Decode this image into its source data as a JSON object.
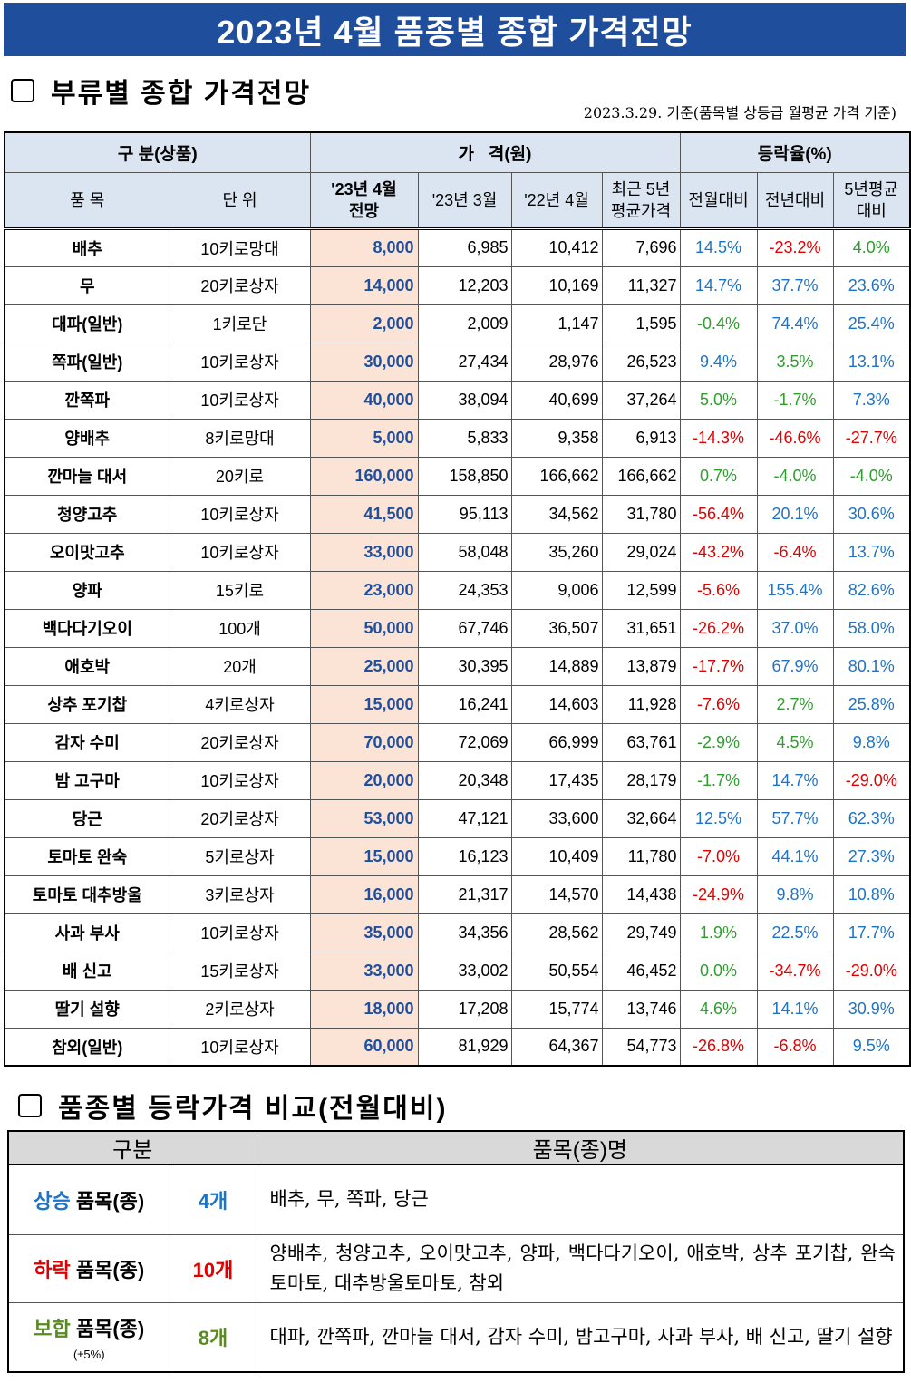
{
  "title": "2023년 4월 품종별 종합 가격전망",
  "section1": {
    "title": "부류별 종합 가격전망",
    "note": "2023.3.29. 기준(품목별 상등급 월평균 가격 기준)"
  },
  "table": {
    "header": {
      "group": "구 분(상품)",
      "price": "가   격(원)",
      "rate": "등락율(%)",
      "item": "품 목",
      "unit": "단 위",
      "forecast_1": "'23년 4월",
      "forecast_2": "전망",
      "mar23": "'23년 3월",
      "apr22": "'22년 4월",
      "avg5_1": "최근 5년",
      "avg5_2": "평균가격",
      "mom": "전월대비",
      "yoy": "전년대비",
      "vs5_1": "5년평균",
      "vs5_2": "대비"
    },
    "rows": [
      {
        "name": "배추",
        "unit": "10키로망대",
        "forecast": "8,000",
        "mar23": "6,985",
        "apr22": "10,412",
        "avg5": "7,696",
        "mom": "14.5%",
        "yoy": "-23.2%",
        "vs5": "4.0%",
        "mom_c": "up",
        "yoy_c": "down",
        "vs5_c": "flat"
      },
      {
        "name": "무",
        "unit": "20키로상자",
        "forecast": "14,000",
        "mar23": "12,203",
        "apr22": "10,169",
        "avg5": "11,327",
        "mom": "14.7%",
        "yoy": "37.7%",
        "vs5": "23.6%",
        "mom_c": "up",
        "yoy_c": "up",
        "vs5_c": "up"
      },
      {
        "name": "대파(일반)",
        "unit": "1키로단",
        "forecast": "2,000",
        "mar23": "2,009",
        "apr22": "1,147",
        "avg5": "1,595",
        "mom": "-0.4%",
        "yoy": "74.4%",
        "vs5": "25.4%",
        "mom_c": "flat",
        "yoy_c": "up",
        "vs5_c": "up"
      },
      {
        "name": "쪽파(일반)",
        "unit": "10키로상자",
        "forecast": "30,000",
        "mar23": "27,434",
        "apr22": "28,976",
        "avg5": "26,523",
        "mom": "9.4%",
        "yoy": "3.5%",
        "vs5": "13.1%",
        "mom_c": "up",
        "yoy_c": "flat",
        "vs5_c": "up"
      },
      {
        "name": "깐쪽파",
        "unit": "10키로상자",
        "forecast": "40,000",
        "mar23": "38,094",
        "apr22": "40,699",
        "avg5": "37,264",
        "mom": "5.0%",
        "yoy": "-1.7%",
        "vs5": "7.3%",
        "mom_c": "flat",
        "yoy_c": "flat",
        "vs5_c": "up"
      },
      {
        "name": "양배추",
        "unit": "8키로망대",
        "forecast": "5,000",
        "mar23": "5,833",
        "apr22": "9,358",
        "avg5": "6,913",
        "mom": "-14.3%",
        "yoy": "-46.6%",
        "vs5": "-27.7%",
        "mom_c": "down",
        "yoy_c": "down",
        "vs5_c": "down"
      },
      {
        "name": "깐마늘 대서",
        "unit": "20키로",
        "forecast": "160,000",
        "mar23": "158,850",
        "apr22": "166,662",
        "avg5": "166,662",
        "mom": "0.7%",
        "yoy": "-4.0%",
        "vs5": "-4.0%",
        "mom_c": "flat",
        "yoy_c": "flat",
        "vs5_c": "flat"
      },
      {
        "name": "청양고추",
        "unit": "10키로상자",
        "forecast": "41,500",
        "mar23": "95,113",
        "apr22": "34,562",
        "avg5": "31,780",
        "mom": "-56.4%",
        "yoy": "20.1%",
        "vs5": "30.6%",
        "mom_c": "down",
        "yoy_c": "up",
        "vs5_c": "up"
      },
      {
        "name": "오이맛고추",
        "unit": "10키로상자",
        "forecast": "33,000",
        "mar23": "58,048",
        "apr22": "35,260",
        "avg5": "29,024",
        "mom": "-43.2%",
        "yoy": "-6.4%",
        "vs5": "13.7%",
        "mom_c": "down",
        "yoy_c": "down",
        "vs5_c": "up"
      },
      {
        "name": "양파",
        "unit": "15키로",
        "forecast": "23,000",
        "mar23": "24,353",
        "apr22": "9,006",
        "avg5": "12,599",
        "mom": "-5.6%",
        "yoy": "155.4%",
        "vs5": "82.6%",
        "mom_c": "down",
        "yoy_c": "up",
        "vs5_c": "up"
      },
      {
        "name": "백다다기오이",
        "unit": "100개",
        "forecast": "50,000",
        "mar23": "67,746",
        "apr22": "36,507",
        "avg5": "31,651",
        "mom": "-26.2%",
        "yoy": "37.0%",
        "vs5": "58.0%",
        "mom_c": "down",
        "yoy_c": "up",
        "vs5_c": "up"
      },
      {
        "name": "애호박",
        "unit": "20개",
        "forecast": "25,000",
        "mar23": "30,395",
        "apr22": "14,889",
        "avg5": "13,879",
        "mom": "-17.7%",
        "yoy": "67.9%",
        "vs5": "80.1%",
        "mom_c": "down",
        "yoy_c": "up",
        "vs5_c": "up"
      },
      {
        "name": "상추 포기찹",
        "unit": "4키로상자",
        "forecast": "15,000",
        "mar23": "16,241",
        "apr22": "14,603",
        "avg5": "11,928",
        "mom": "-7.6%",
        "yoy": "2.7%",
        "vs5": "25.8%",
        "mom_c": "down",
        "yoy_c": "flat",
        "vs5_c": "up"
      },
      {
        "name": "감자 수미",
        "unit": "20키로상자",
        "forecast": "70,000",
        "mar23": "72,069",
        "apr22": "66,999",
        "avg5": "63,761",
        "mom": "-2.9%",
        "yoy": "4.5%",
        "vs5": "9.8%",
        "mom_c": "flat",
        "yoy_c": "flat",
        "vs5_c": "up"
      },
      {
        "name": "밤 고구마",
        "unit": "10키로상자",
        "forecast": "20,000",
        "mar23": "20,348",
        "apr22": "17,435",
        "avg5": "28,179",
        "mom": "-1.7%",
        "yoy": "14.7%",
        "vs5": "-29.0%",
        "mom_c": "flat",
        "yoy_c": "up",
        "vs5_c": "down"
      },
      {
        "name": "당근",
        "unit": "20키로상자",
        "forecast": "53,000",
        "mar23": "47,121",
        "apr22": "33,600",
        "avg5": "32,664",
        "mom": "12.5%",
        "yoy": "57.7%",
        "vs5": "62.3%",
        "mom_c": "up",
        "yoy_c": "up",
        "vs5_c": "up"
      },
      {
        "name": "토마토 완숙",
        "unit": "5키로상자",
        "forecast": "15,000",
        "mar23": "16,123",
        "apr22": "10,409",
        "avg5": "11,780",
        "mom": "-7.0%",
        "yoy": "44.1%",
        "vs5": "27.3%",
        "mom_c": "down",
        "yoy_c": "up",
        "vs5_c": "up"
      },
      {
        "name": "토마토 대추방울",
        "unit": "3키로상자",
        "forecast": "16,000",
        "mar23": "21,317",
        "apr22": "14,570",
        "avg5": "14,438",
        "mom": "-24.9%",
        "yoy": "9.8%",
        "vs5": "10.8%",
        "mom_c": "down",
        "yoy_c": "up",
        "vs5_c": "up"
      },
      {
        "name": "사과 부사",
        "unit": "10키로상자",
        "forecast": "35,000",
        "mar23": "34,356",
        "apr22": "28,562",
        "avg5": "29,749",
        "mom": "1.9%",
        "yoy": "22.5%",
        "vs5": "17.7%",
        "mom_c": "flat",
        "yoy_c": "up",
        "vs5_c": "up"
      },
      {
        "name": "배 신고",
        "unit": "15키로상자",
        "forecast": "33,000",
        "mar23": "33,002",
        "apr22": "50,554",
        "avg5": "46,452",
        "mom": "0.0%",
        "yoy": "-34.7%",
        "vs5": "-29.0%",
        "mom_c": "flat",
        "yoy_c": "down",
        "vs5_c": "down"
      },
      {
        "name": "딸기 설향",
        "unit": "2키로상자",
        "forecast": "18,000",
        "mar23": "17,208",
        "apr22": "15,774",
        "avg5": "13,746",
        "mom": "4.6%",
        "yoy": "14.1%",
        "vs5": "30.9%",
        "mom_c": "flat",
        "yoy_c": "up",
        "vs5_c": "up"
      },
      {
        "name": "참외(일반)",
        "unit": "10키로상자",
        "forecast": "60,000",
        "mar23": "81,929",
        "apr22": "64,367",
        "avg5": "54,773",
        "mom": "-26.8%",
        "yoy": "-6.8%",
        "vs5": "9.5%",
        "mom_c": "down",
        "yoy_c": "down",
        "vs5_c": "up"
      }
    ]
  },
  "section2": {
    "title": "품종별 등락가격 비교(전월대비)"
  },
  "compare": {
    "header_group": "구분",
    "header_items": "품목(종)명",
    "rise": {
      "label_a": "상승",
      "label_b": " 품목(종)",
      "count": "4개",
      "items": "배추, 무, 쪽파, 당근"
    },
    "fall": {
      "label_a": "하락",
      "label_b": " 품목(종)",
      "count": "10개",
      "items": "양배추, 청양고추, 오이맛고추, 양파, 백다다기오이, 애호박, 상추 포기찹, 완숙토마토, 대추방울토마토, 참외"
    },
    "flat": {
      "label_a": "보합",
      "label_b": " 품목(종)",
      "sub": "(±5%)",
      "count": "8개",
      "items": "대파, 깐쪽파, 깐마늘 대서, 감자 수미, 밤고구마, 사과 부사, 배 신고, 딸기 설향"
    },
    "colors": {
      "rise": "#1f73c7",
      "fall": "#e00000",
      "flat": "#5a8a24"
    }
  }
}
